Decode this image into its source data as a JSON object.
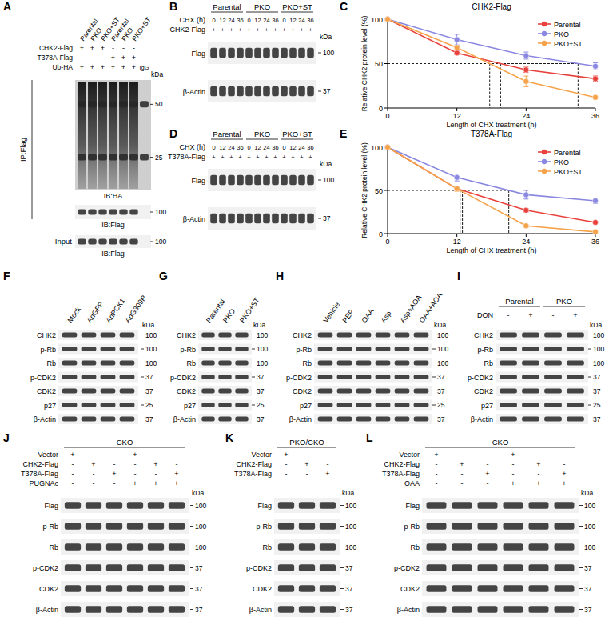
{
  "kda_label": "kDa",
  "chart_data": [
    {
      "type": "line",
      "label": "C",
      "title": "CHK2-Flag",
      "x_label": "Length of CHX treatment (h)",
      "y_label": "Relative CHK2 protein level (%)",
      "x": [
        0,
        12,
        24,
        36
      ],
      "xlim": [
        0,
        36
      ],
      "ylim": [
        0,
        100
      ],
      "xticks": [
        0,
        12,
        24,
        36
      ],
      "yticks": [
        0,
        50,
        100
      ],
      "half_level": 50,
      "legend": "upper right",
      "marker": "circle",
      "series": [
        {
          "name": "Parental",
          "color": "#e8413c",
          "values": [
            100,
            62,
            43,
            33
          ],
          "errors": [
            0,
            2,
            3,
            3
          ]
        },
        {
          "name": "PKO",
          "color": "#8a87e0",
          "values": [
            100,
            77,
            59,
            47
          ],
          "errors": [
            0,
            6,
            4,
            4
          ]
        },
        {
          "name": "PKO+ST",
          "color": "#f5a34a",
          "values": [
            100,
            68,
            30,
            12
          ],
          "errors": [
            0,
            2,
            6,
            2
          ]
        }
      ]
    },
    {
      "type": "line",
      "label": "E",
      "title": "T378A-Flag",
      "x_label": "Length of CHX treatment (h)",
      "y_label": "Relative CHK2 protein level (%)",
      "x": [
        0,
        12,
        24,
        36
      ],
      "xlim": [
        0,
        36
      ],
      "ylim": [
        0,
        100
      ],
      "xticks": [
        0,
        12,
        24,
        36
      ],
      "yticks": [
        0,
        50,
        100
      ],
      "half_level": 50,
      "legend": "upper right",
      "marker": "circle",
      "series": [
        {
          "name": "Parental",
          "color": "#e8413c",
          "values": [
            100,
            52,
            27,
            13
          ],
          "errors": [
            0,
            2,
            2,
            1
          ]
        },
        {
          "name": "PKO",
          "color": "#8a87e0",
          "values": [
            100,
            65,
            45,
            38
          ],
          "errors": [
            0,
            4,
            5,
            3
          ]
        },
        {
          "name": "PKO+ST",
          "color": "#f5a34a",
          "values": [
            100,
            52,
            9,
            2
          ],
          "errors": [
            0,
            3,
            2,
            1
          ]
        }
      ]
    }
  ],
  "panels": {
    "A": {
      "label": "A",
      "columns": [
        "Parental",
        "PKO",
        "PKO+ST",
        "Parental",
        "PKO",
        "PKO+ST",
        null
      ],
      "rows": [
        {
          "name": "CHK2-Flag",
          "marks": [
            "+",
            "+",
            "+",
            "-",
            "-",
            "-",
            null
          ]
        },
        {
          "name": "T378A-Flag",
          "marks": [
            "-",
            "-",
            "-",
            "+",
            "+",
            "+",
            null
          ]
        },
        {
          "name": "Ub-HA",
          "marks": [
            "+",
            "+",
            "+",
            "+",
            "+",
            "+",
            "IgG"
          ]
        }
      ],
      "ip_label": "IP:Flag",
      "input_label": "Input",
      "blots": [
        {
          "name": "IB:HA",
          "kda": [
            50,
            25
          ]
        },
        {
          "name": "IB:Flag",
          "kda": [
            100
          ]
        },
        {
          "name": "IB:Flag",
          "kda": [
            100
          ]
        }
      ]
    },
    "B": {
      "label": "B",
      "groups": [
        "Parental",
        "PKO",
        "PKO+ST"
      ],
      "rows": [
        {
          "name": "CHX (h)",
          "marks": [
            0,
            12,
            24,
            36,
            0,
            12,
            24,
            36,
            0,
            12,
            24,
            36
          ]
        },
        {
          "name": "CHK2-Flag",
          "marks": [
            "+",
            "+",
            "+",
            "+",
            "+",
            "+",
            "+",
            "+",
            "+",
            "+",
            "+",
            "+"
          ]
        }
      ],
      "blots": [
        {
          "name": "Flag",
          "kda": 100
        },
        {
          "name": "β-Actin",
          "kda": 37
        }
      ]
    },
    "D": {
      "label": "D",
      "groups": [
        "Parental",
        "PKO",
        "PKO+ST"
      ],
      "rows": [
        {
          "name": "CHX (h)",
          "marks": [
            0,
            12,
            24,
            36,
            0,
            12,
            24,
            36,
            0,
            12,
            24,
            36
          ]
        },
        {
          "name": "T378A-Flag",
          "marks": [
            "+",
            "+",
            "+",
            "+",
            "+",
            "+",
            "+",
            "+",
            "+",
            "+",
            "+",
            "+"
          ]
        }
      ],
      "blots": [
        {
          "name": "Flag",
          "kda": 100
        },
        {
          "name": "β-Actin",
          "kda": 37
        }
      ]
    },
    "F": {
      "label": "F",
      "columns": [
        "Mock",
        "AdGFP",
        "AdPCK1",
        "AdG309R"
      ],
      "blots": [
        {
          "name": "CHK2",
          "kda": 100
        },
        {
          "name": "p-Rb",
          "kda": 100
        },
        {
          "name": "Rb",
          "kda": 100
        },
        {
          "name": "p-CDK2",
          "kda": 37
        },
        {
          "name": "CDK2",
          "kda": 37
        },
        {
          "name": "p27",
          "kda": 25
        },
        {
          "name": "β-Actin",
          "kda": 37
        }
      ]
    },
    "G": {
      "label": "G",
      "columns": [
        "Parental",
        "PKO",
        "PKO+ST"
      ],
      "blots": [
        {
          "name": "CHK2",
          "kda": 100
        },
        {
          "name": "p-Rb",
          "kda": 100
        },
        {
          "name": "Rb",
          "kda": 100
        },
        {
          "name": "p-CDK2",
          "kda": 37
        },
        {
          "name": "CDK2",
          "kda": 37
        },
        {
          "name": "p27",
          "kda": 25
        },
        {
          "name": "β-Actin",
          "kda": 37
        }
      ]
    },
    "H": {
      "label": "H",
      "columns": [
        "Vehicle",
        "PEP",
        "OAA",
        "Asp",
        "Asp+AOA",
        "OAA+AOA"
      ],
      "blots": [
        {
          "name": "CHK2",
          "kda": 100
        },
        {
          "name": "p-Rb",
          "kda": 100
        },
        {
          "name": "Rb",
          "kda": 100
        },
        {
          "name": "p-CDK2",
          "kda": 37
        },
        {
          "name": "CDK2",
          "kda": 37
        },
        {
          "name": "p27",
          "kda": 25
        },
        {
          "name": "β-Actin",
          "kda": 37
        }
      ]
    },
    "I": {
      "label": "I",
      "groups": [
        "Parental",
        "PKO"
      ],
      "rows": [
        {
          "name": "DON",
          "marks": [
            "-",
            "+",
            "-",
            "+"
          ]
        }
      ],
      "blots": [
        {
          "name": "CHK2",
          "kda": 100
        },
        {
          "name": "p-Rb",
          "kda": 100
        },
        {
          "name": "Rb",
          "kda": 100
        },
        {
          "name": "p-CDK2",
          "kda": 37
        },
        {
          "name": "CDK2",
          "kda": 37
        },
        {
          "name": "p27",
          "kda": 25
        },
        {
          "name": "β-Actin",
          "kda": 37
        }
      ]
    },
    "J": {
      "label": "J",
      "groups": [
        "CKO"
      ],
      "rows": [
        {
          "name": "Vector",
          "marks": [
            "+",
            "-",
            "-",
            "+",
            "-",
            "-"
          ]
        },
        {
          "name": "CHK2-Flag",
          "marks": [
            "-",
            "+",
            "-",
            "-",
            "+",
            "-"
          ]
        },
        {
          "name": "T378A-Flag",
          "marks": [
            "-",
            "-",
            "+",
            "-",
            "-",
            "+"
          ]
        },
        {
          "name": "PUGNAc",
          "marks": [
            "-",
            "-",
            "-",
            "+",
            "+",
            "+"
          ]
        }
      ],
      "blots": [
        {
          "name": "Flag",
          "kda": 100
        },
        {
          "name": "p-Rb",
          "kda": 100
        },
        {
          "name": "Rb",
          "kda": 100
        },
        {
          "name": "p-CDK2",
          "kda": 37
        },
        {
          "name": "CDK2",
          "kda": 37
        },
        {
          "name": "β-Actin",
          "kda": 37
        }
      ]
    },
    "K": {
      "label": "K",
      "groups": [
        "PKO/CKO"
      ],
      "rows": [
        {
          "name": "Vector",
          "marks": [
            "+",
            "-",
            "-"
          ]
        },
        {
          "name": "CHK2-Flag",
          "marks": [
            "-",
            "+",
            "-"
          ]
        },
        {
          "name": "T378A-Flag",
          "marks": [
            "-",
            "-",
            "+"
          ]
        }
      ],
      "blots": [
        {
          "name": "Flag",
          "kda": 100
        },
        {
          "name": "p-Rb",
          "kda": 100
        },
        {
          "name": "Rb",
          "kda": 100
        },
        {
          "name": "p-CDK2",
          "kda": 37
        },
        {
          "name": "CDK2",
          "kda": 37
        },
        {
          "name": "β-Actin",
          "kda": 37
        }
      ]
    },
    "L": {
      "label": "L",
      "groups": [
        "CKO"
      ],
      "rows": [
        {
          "name": "Vector",
          "marks": [
            "+",
            "-",
            "-",
            "+",
            "-",
            "-"
          ]
        },
        {
          "name": "CHK2-Flag",
          "marks": [
            "-",
            "+",
            "-",
            "-",
            "+",
            "-"
          ]
        },
        {
          "name": "T378A-Flag",
          "marks": [
            "-",
            "-",
            "+",
            "-",
            "-",
            "+"
          ]
        },
        {
          "name": "OAA",
          "marks": [
            "-",
            "-",
            "-",
            "+",
            "+",
            "+"
          ]
        }
      ],
      "blots": [
        {
          "name": "Flag",
          "kda": 100
        },
        {
          "name": "p-Rb",
          "kda": 100
        },
        {
          "name": "Rb",
          "kda": 100
        },
        {
          "name": "p-CDK2",
          "kda": 37
        },
        {
          "name": "CDK2",
          "kda": 37
        },
        {
          "name": "β-Actin",
          "kda": 37
        }
      ]
    }
  }
}
